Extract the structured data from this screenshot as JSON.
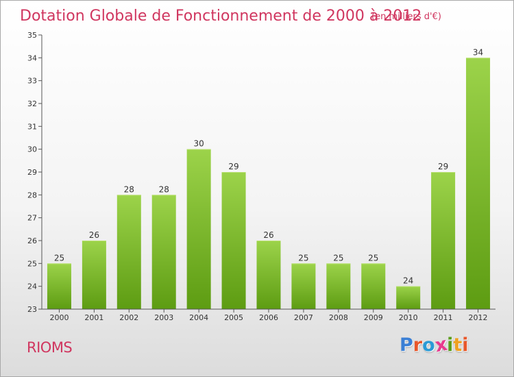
{
  "header": {
    "title": "Dotation Globale de Fonctionnement de 2000 à 2012",
    "subtitle": "(en milliers d'€)"
  },
  "footer": {
    "commune": "RIOMS",
    "brand": "Proxiti"
  },
  "brand_colors": [
    "#3a7fd5",
    "#e8572a",
    "#2a9bd6",
    "#e83a8f",
    "#5a9d1c",
    "#f0a020",
    "#e8572a"
  ],
  "colors": {
    "text_accent": "#d0365f",
    "bar_top": "#9cd34a",
    "bar_bottom": "#5d9c12",
    "axis": "#333333"
  },
  "chart_data": {
    "type": "bar",
    "title": "Dotation Globale de Fonctionnement de 2000 à 2012",
    "subtitle": "(en milliers d'€)",
    "xlabel": "",
    "ylabel": "",
    "categories": [
      "2000",
      "2001",
      "2002",
      "2003",
      "2004",
      "2005",
      "2006",
      "2007",
      "2008",
      "2009",
      "2010",
      "2011",
      "2012"
    ],
    "values": [
      25,
      26,
      28,
      28,
      30,
      29,
      26,
      25,
      25,
      25,
      24,
      29,
      34
    ],
    "ylim": [
      23,
      35
    ],
    "yticks": [
      23,
      24,
      25,
      26,
      27,
      28,
      29,
      30,
      31,
      32,
      33,
      34,
      35
    ],
    "grid": false,
    "legend": "none",
    "data_labels": true
  }
}
